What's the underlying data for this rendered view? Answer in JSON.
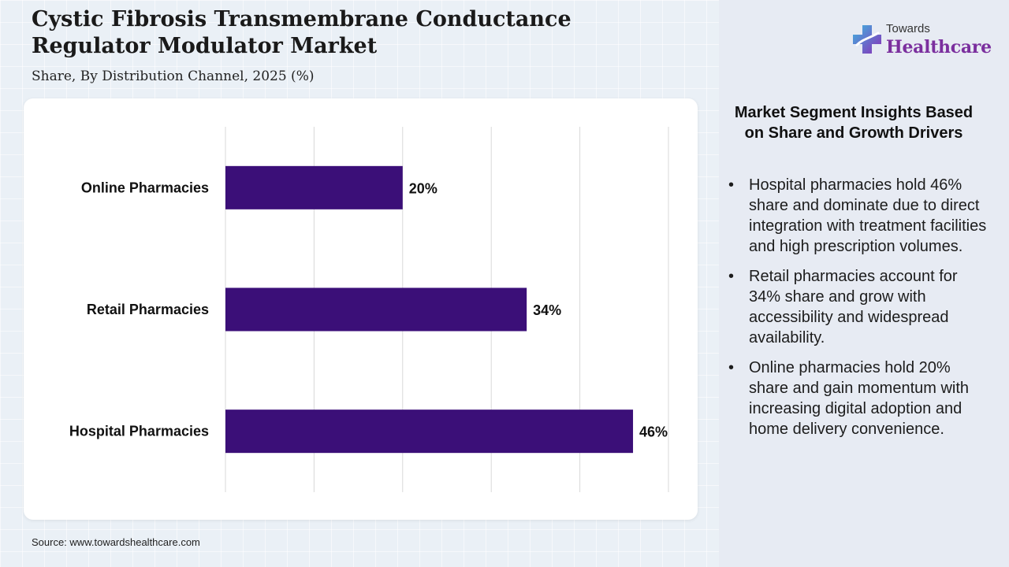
{
  "header": {
    "title": "Cystic Fibrosis Transmembrane Conductance Regulator Modulator Market",
    "subtitle": "Share, By Distribution Channel, 2025 (%)"
  },
  "brand": {
    "top": "Towards",
    "main": "Healthcare",
    "icon": "medical-cross-icon",
    "color": "#7b2f9e"
  },
  "insights": {
    "title": "Market Segment Insights Based on Share and Growth Drivers",
    "bullet": "•",
    "items": [
      "Hospital pharmacies hold 46% share and dominate due to direct integration with treatment facilities and high prescription volumes.",
      "Retail pharmacies account for 34% share and grow with accessibility and widespread availability.",
      "Online pharmacies hold 20% share and gain momentum with increasing digital adoption and home delivery convenience."
    ]
  },
  "source": "Source: www.towardshealthcare.com",
  "chart_data": {
    "type": "bar",
    "orientation": "horizontal",
    "categories": [
      "Online Pharmacies",
      "Retail Pharmacies",
      "Hospital Pharmacies"
    ],
    "values": [
      20,
      34,
      46
    ],
    "data_labels": [
      "20%",
      "34%",
      "46%"
    ],
    "unit": "%",
    "xlim": [
      0,
      50
    ],
    "grid": true,
    "bar_color": "#3b0f78"
  }
}
